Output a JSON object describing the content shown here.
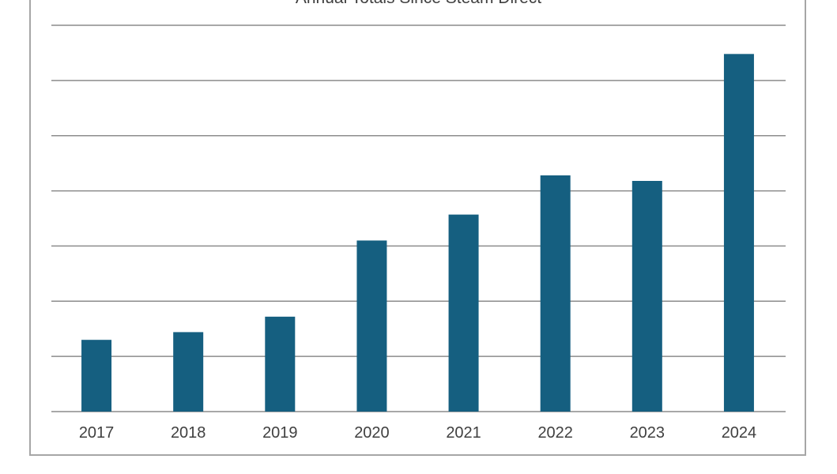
{
  "chart_data": {
    "type": "bar",
    "title": "Annual Totals Since Steam Direct",
    "xlabel": "",
    "ylabel": "",
    "categories": [
      "2017",
      "2018",
      "2019",
      "2020",
      "2021",
      "2022",
      "2023",
      "2024"
    ],
    "values": [
      1.3,
      1.44,
      1.72,
      3.1,
      3.57,
      4.28,
      4.18,
      6.48
    ],
    "ylim": [
      0,
      7
    ],
    "y_tick_labels_shown": false,
    "grid": true,
    "legend": "none",
    "colors": {
      "bar": "#155f80",
      "grid": "#8c8c8c",
      "border": "#a6a6a6",
      "text": "#404040"
    }
  }
}
